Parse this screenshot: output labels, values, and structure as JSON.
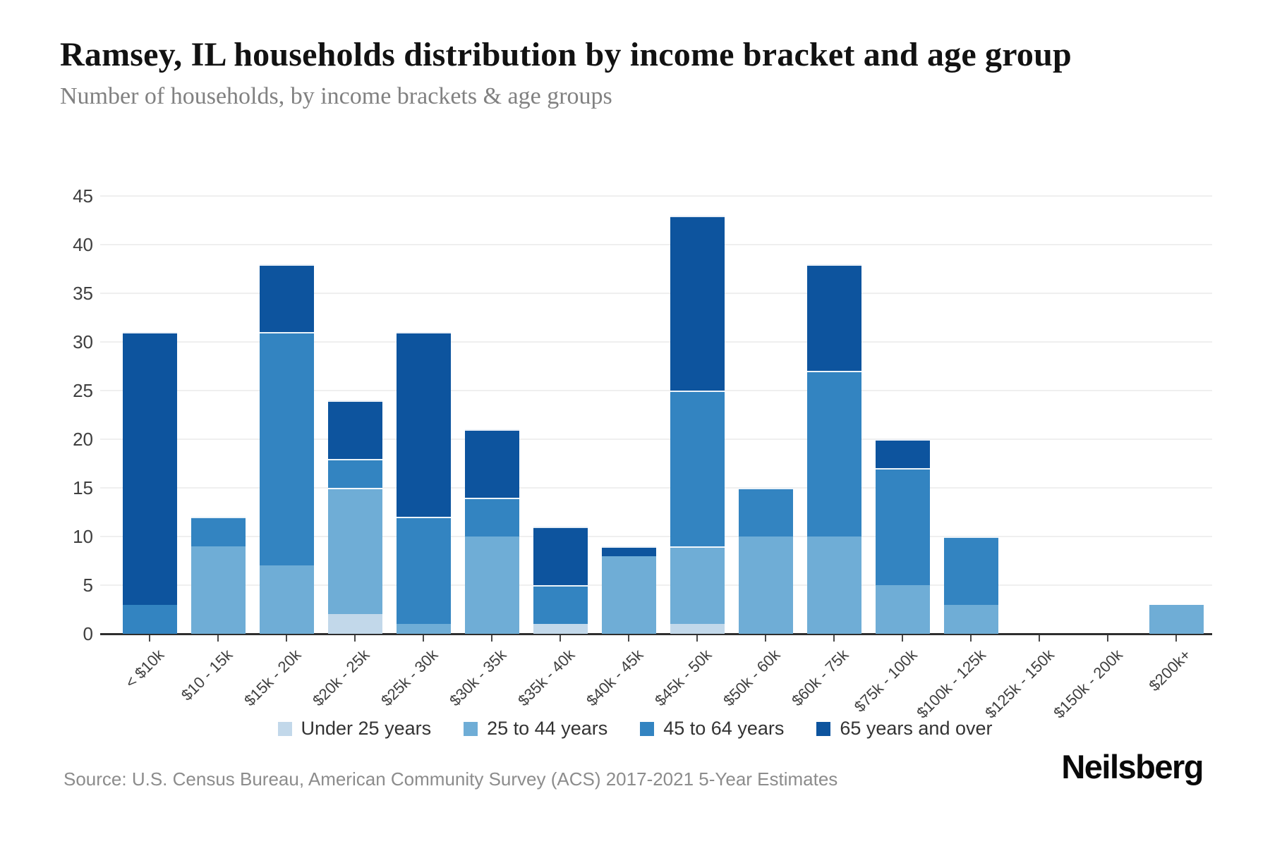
{
  "header": {
    "title": "Ramsey, IL households distribution by income bracket and age group",
    "subtitle": "Number of households, by income brackets & age groups"
  },
  "footer": {
    "source": "Source: U.S. Census Bureau, American Community Survey (ACS) 2017-2021 5-Year Estimates",
    "brand": "Neilsberg"
  },
  "colors": {
    "under_25": "#c2d8ea",
    "age_25_44": "#6fadd6",
    "age_45_64": "#3384c1",
    "age_65_plus": "#0d549e",
    "gridline": "#efefef",
    "axis": "#2e2e2e",
    "axis_text": "#3f3f3f",
    "muted_text": "#8c8c8c"
  },
  "chart_data": {
    "type": "bar",
    "stacked": true,
    "title": "Ramsey, IL households distribution by income bracket and age group",
    "subtitle": "Number of households, by income brackets & age groups",
    "xlabel": "",
    "ylabel": "Number of households",
    "ylim": [
      0,
      45
    ],
    "ytick_step": 5,
    "grid": true,
    "legend_position": "bottom",
    "categories": [
      "< $10k",
      "$10 - 15k",
      "$15k - 20k",
      "$20k - 25k",
      "$25k - 30k",
      "$30k - 35k",
      "$35k - 40k",
      "$40k - 45k",
      "$45k - 50k",
      "$50k - 60k",
      "$60k - 75k",
      "$75k - 100k",
      "$100k - 125k",
      "$125k - 150k",
      "$150k - 200k",
      "$200k+"
    ],
    "series": [
      {
        "name": "Under 25 years",
        "color": "#c2d8ea",
        "values": [
          0,
          0,
          0,
          2,
          0,
          0,
          1,
          0,
          1,
          0,
          0,
          0,
          0,
          0,
          0,
          0
        ]
      },
      {
        "name": "25 to 44 years",
        "color": "#6fadd6",
        "values": [
          0,
          9,
          7,
          13,
          1,
          10,
          0,
          8,
          8,
          10,
          10,
          5,
          3,
          0,
          0,
          3
        ]
      },
      {
        "name": "45 to 64 years",
        "color": "#3384c1",
        "values": [
          3,
          3,
          24,
          3,
          11,
          4,
          4,
          0,
          16,
          5,
          17,
          12,
          7,
          0,
          0,
          0
        ]
      },
      {
        "name": "65 years and over",
        "color": "#0d549e",
        "values": [
          28,
          0,
          7,
          6,
          19,
          7,
          6,
          1,
          18,
          0,
          11,
          3,
          0,
          0,
          0,
          0
        ]
      }
    ],
    "totals": [
      31,
      12,
      38,
      24,
      31,
      21,
      11,
      9,
      43,
      15,
      38,
      20,
      10,
      0,
      0,
      3
    ]
  }
}
